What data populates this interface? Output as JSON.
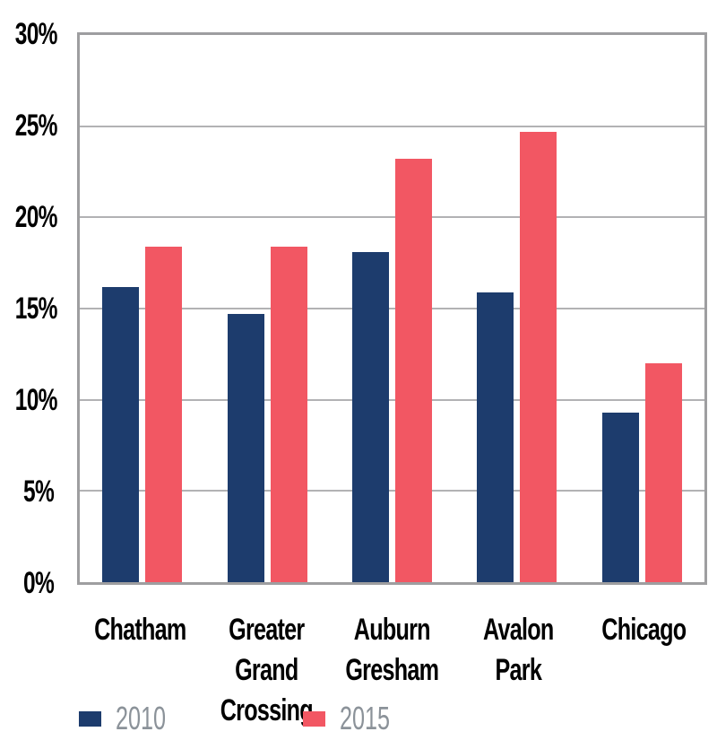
{
  "chart_data": {
    "type": "bar",
    "title": "",
    "categories": [
      "Chatham",
      "Greater Grand\nCrossing",
      "Auburn\nGresham",
      "Avalon\nPark",
      "Chicago"
    ],
    "series": [
      {
        "name": "2010",
        "color": "#1d3c6d",
        "values": [
          16.2,
          14.7,
          18.1,
          15.9,
          9.3
        ]
      },
      {
        "name": "2015",
        "color": "#f25763",
        "values": [
          18.4,
          18.4,
          23.2,
          24.7,
          12.0
        ]
      }
    ],
    "xlabel": "",
    "ylabel": "",
    "ylim": [
      0,
      30
    ],
    "ytick_labels": [
      "30%",
      "25%",
      "20%",
      "15%",
      "10%",
      "5%",
      "0%"
    ],
    "grid": "horizontal",
    "legend_position": "bottom-left"
  },
  "colors": {
    "plot_border": "#9e9ea0",
    "gridline": "#b2b2b4",
    "axis_text": "#000000",
    "legend_text": "#8b9299",
    "background": "#ffffff"
  }
}
